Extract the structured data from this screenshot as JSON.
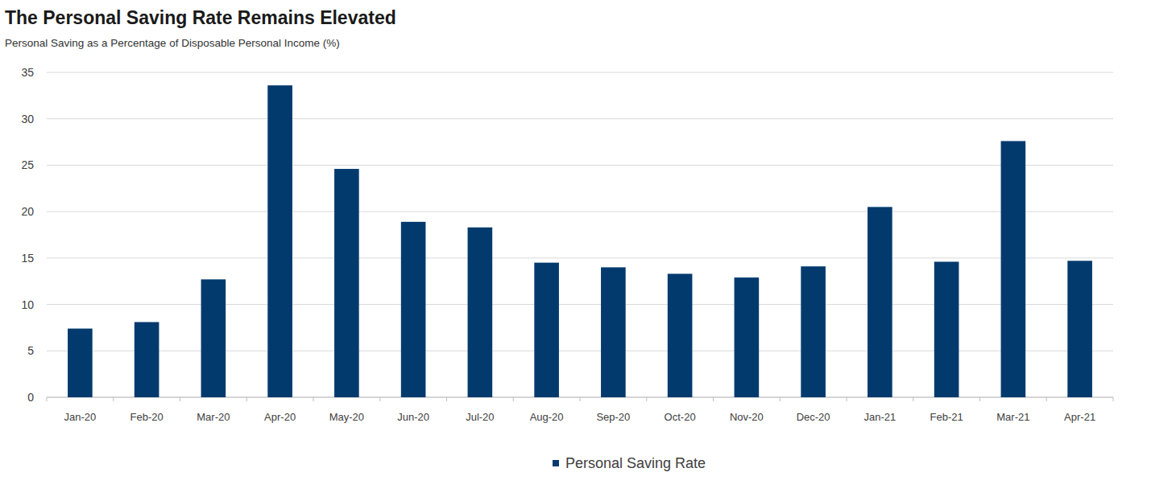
{
  "chart_data": {
    "type": "bar",
    "title": "The Personal Saving Rate Remains Elevated",
    "subtitle": "Personal Saving as a Percentage of Disposable Personal Income (%)",
    "categories": [
      "Jan-20",
      "Feb-20",
      "Mar-20",
      "Apr-20",
      "May-20",
      "Jun-20",
      "Jul-20",
      "Aug-20",
      "Sep-20",
      "Oct-20",
      "Nov-20",
      "Dec-20",
      "Jan-21",
      "Feb-21",
      "Mar-21",
      "Apr-21"
    ],
    "series": [
      {
        "name": "Personal Saving Rate",
        "color": "#023a6e",
        "values": [
          7.4,
          8.1,
          12.7,
          33.6,
          24.6,
          18.9,
          18.3,
          14.5,
          14.0,
          13.3,
          12.9,
          14.1,
          20.5,
          14.6,
          27.6,
          14.7
        ]
      }
    ],
    "ylim": [
      0,
      35
    ],
    "yticks": [
      0,
      5,
      10,
      15,
      20,
      25,
      30,
      35
    ],
    "grid": true,
    "legend": "bottom"
  }
}
